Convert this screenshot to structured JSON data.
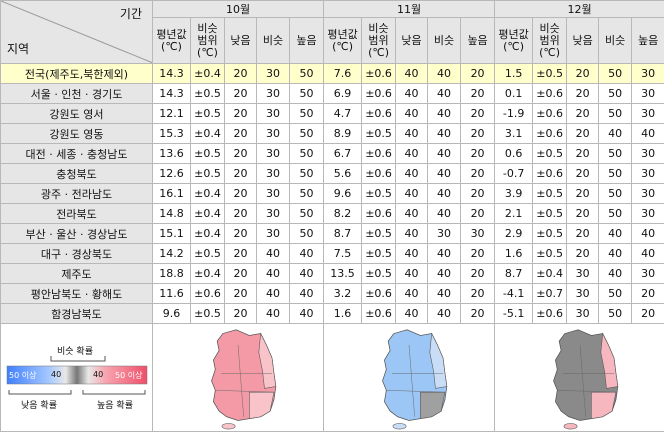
{
  "header": {
    "period_label": "기간",
    "region_label": "지역",
    "months": [
      "10월",
      "11월",
      "12월"
    ],
    "sub": {
      "mean": [
        "평년값",
        "(℃)"
      ],
      "range": [
        "비슷",
        "범위",
        "(℃)"
      ],
      "below": "낮음",
      "near": "비슷",
      "above": "높음"
    }
  },
  "rows": [
    {
      "region": "전국(제주도,북한제외)",
      "highlight": true,
      "m": [
        [
          "14.3",
          "±0.4",
          "20",
          "30",
          "50"
        ],
        [
          "7.6",
          "±0.6",
          "40",
          "40",
          "20"
        ],
        [
          "1.5",
          "±0.5",
          "20",
          "50",
          "30"
        ]
      ]
    },
    {
      "region": "서울 · 인천 · 경기도",
      "m": [
        [
          "14.3",
          "±0.5",
          "20",
          "30",
          "50"
        ],
        [
          "6.9",
          "±0.6",
          "40",
          "40",
          "20"
        ],
        [
          "0.1",
          "±0.6",
          "20",
          "50",
          "30"
        ]
      ]
    },
    {
      "region": "강원도 영서",
      "m": [
        [
          "12.1",
          "±0.5",
          "20",
          "30",
          "50"
        ],
        [
          "4.7",
          "±0.6",
          "40",
          "40",
          "20"
        ],
        [
          "-1.9",
          "±0.6",
          "20",
          "50",
          "30"
        ]
      ]
    },
    {
      "region": "강원도 영동",
      "m": [
        [
          "15.3",
          "±0.4",
          "20",
          "30",
          "50"
        ],
        [
          "8.9",
          "±0.5",
          "40",
          "40",
          "20"
        ],
        [
          "3.1",
          "±0.6",
          "20",
          "40",
          "40"
        ]
      ]
    },
    {
      "region": "대전 · 세종 · 충청남도",
      "m": [
        [
          "13.6",
          "±0.5",
          "20",
          "30",
          "50"
        ],
        [
          "6.7",
          "±0.6",
          "40",
          "40",
          "20"
        ],
        [
          "0.6",
          "±0.5",
          "20",
          "50",
          "30"
        ]
      ]
    },
    {
      "region": "충청북도",
      "m": [
        [
          "12.6",
          "±0.5",
          "20",
          "30",
          "50"
        ],
        [
          "5.6",
          "±0.6",
          "40",
          "40",
          "20"
        ],
        [
          "-0.7",
          "±0.6",
          "20",
          "50",
          "30"
        ]
      ]
    },
    {
      "region": "광주 · 전라남도",
      "m": [
        [
          "16.1",
          "±0.4",
          "20",
          "30",
          "50"
        ],
        [
          "9.6",
          "±0.5",
          "40",
          "40",
          "20"
        ],
        [
          "3.9",
          "±0.5",
          "20",
          "50",
          "30"
        ]
      ]
    },
    {
      "region": "전라북도",
      "m": [
        [
          "14.8",
          "±0.4",
          "20",
          "30",
          "50"
        ],
        [
          "8.2",
          "±0.6",
          "40",
          "40",
          "20"
        ],
        [
          "2.1",
          "±0.5",
          "20",
          "50",
          "30"
        ]
      ]
    },
    {
      "region": "부산 · 울산 · 경상남도",
      "m": [
        [
          "15.1",
          "±0.4",
          "20",
          "30",
          "50"
        ],
        [
          "8.7",
          "±0.5",
          "40",
          "30",
          "30"
        ],
        [
          "2.9",
          "±0.5",
          "20",
          "40",
          "40"
        ]
      ]
    },
    {
      "region": "대구 · 경상북도",
      "m": [
        [
          "14.2",
          "±0.5",
          "20",
          "40",
          "40"
        ],
        [
          "7.5",
          "±0.5",
          "40",
          "40",
          "20"
        ],
        [
          "1.6",
          "±0.5",
          "20",
          "40",
          "40"
        ]
      ]
    },
    {
      "region": "제주도",
      "m": [
        [
          "18.8",
          "±0.4",
          "20",
          "40",
          "40"
        ],
        [
          "13.5",
          "±0.5",
          "40",
          "40",
          "20"
        ],
        [
          "8.7",
          "±0.4",
          "30",
          "40",
          "30"
        ]
      ]
    },
    {
      "region": "평안남북도 · 황해도",
      "m": [
        [
          "11.6",
          "±0.6",
          "20",
          "40",
          "40"
        ],
        [
          "3.2",
          "±0.6",
          "40",
          "40",
          "20"
        ],
        [
          "-4.1",
          "±0.7",
          "30",
          "50",
          "20"
        ]
      ]
    },
    {
      "region": "함경남북도",
      "m": [
        [
          "9.6",
          "±0.5",
          "20",
          "40",
          "40"
        ],
        [
          "1.6",
          "±0.6",
          "40",
          "40",
          "20"
        ],
        [
          "-5.1",
          "±0.6",
          "30",
          "50",
          "20"
        ]
      ]
    }
  ],
  "legend": {
    "near_prob": "비슷 확률",
    "below_prob": "낮음 확률",
    "above_prob": "높음 확률",
    "labels": [
      "50 이상",
      "40",
      "40",
      "50 이상"
    ],
    "colors": {
      "blue_dark": "#3f7fff",
      "blue_light": "#a6c8ff",
      "gray_mid": "#9a9a9a",
      "gray_dark": "#555555",
      "red_light": "#f7a6b0",
      "red_dark": "#ef4f6a"
    }
  },
  "maps": [
    {
      "name": "10월 전망 지도",
      "fill": "#f49aa6",
      "alt": "#f9c3ca"
    },
    {
      "name": "11월 전망 지도",
      "fill": "#9cc6f5",
      "alt": "#c9ddf6"
    },
    {
      "name": "12월 전망 지도",
      "fill": "#8a8a8a",
      "alt": "#f6b7bf"
    }
  ]
}
